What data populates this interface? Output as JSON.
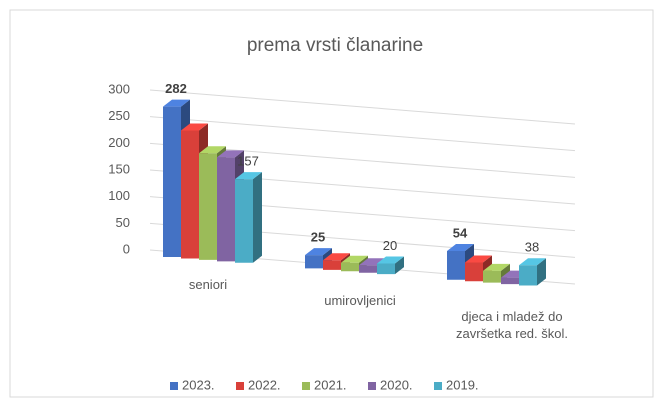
{
  "chart_data": {
    "type": "bar3d",
    "title": "prema vrsti članarine",
    "categories": [
      "seniori",
      "umirovljenici",
      "djeca i mladež do završetka red. škol."
    ],
    "series": [
      {
        "name": "2023.",
        "color": "#4472c4",
        "values": [
          282,
          25,
          54
        ],
        "show_labels": true
      },
      {
        "name": "2022.",
        "color": "#d9403a",
        "values": [
          240,
          18,
          35
        ],
        "show_labels": false
      },
      {
        "name": "2021.",
        "color": "#9bbb59",
        "values": [
          200,
          16,
          22
        ],
        "show_labels": false
      },
      {
        "name": "2020.",
        "color": "#8064a2",
        "values": [
          195,
          14,
          12
        ],
        "show_labels": false
      },
      {
        "name": "2019.",
        "color": "#4bacc6",
        "values": [
          157,
          20,
          38
        ],
        "show_labels": true
      }
    ],
    "ylim": [
      0,
      300
    ],
    "yticks": [
      0,
      50,
      100,
      150,
      200,
      250,
      300
    ],
    "grid": true,
    "legend": "bottom"
  }
}
